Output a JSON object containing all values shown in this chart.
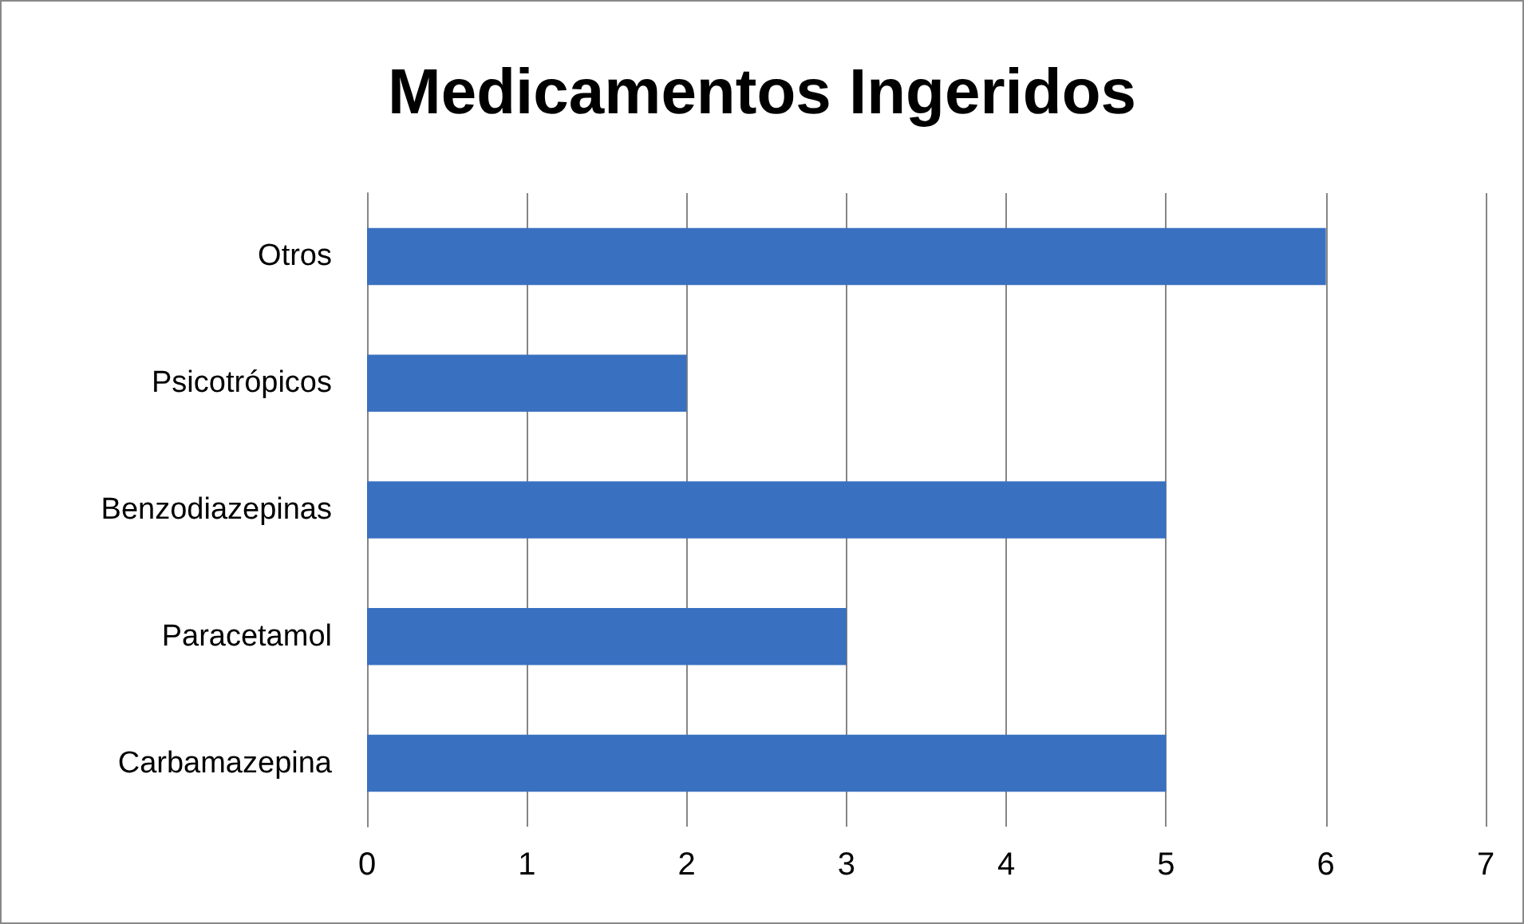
{
  "chart_data": {
    "type": "bar",
    "title": "Medicamentos Ingeridos",
    "orientation": "horizontal",
    "categories": [
      "Otros",
      "Psicotrópicos",
      "Benzodiazepinas",
      "Paracetamol",
      "Carbamazepina"
    ],
    "values": [
      6,
      2,
      5,
      3,
      5
    ],
    "color": "#3a70c0",
    "xlim": [
      0,
      7
    ],
    "xticks": [
      0,
      1,
      2,
      3,
      4,
      5,
      6,
      7
    ],
    "grid": "x"
  }
}
